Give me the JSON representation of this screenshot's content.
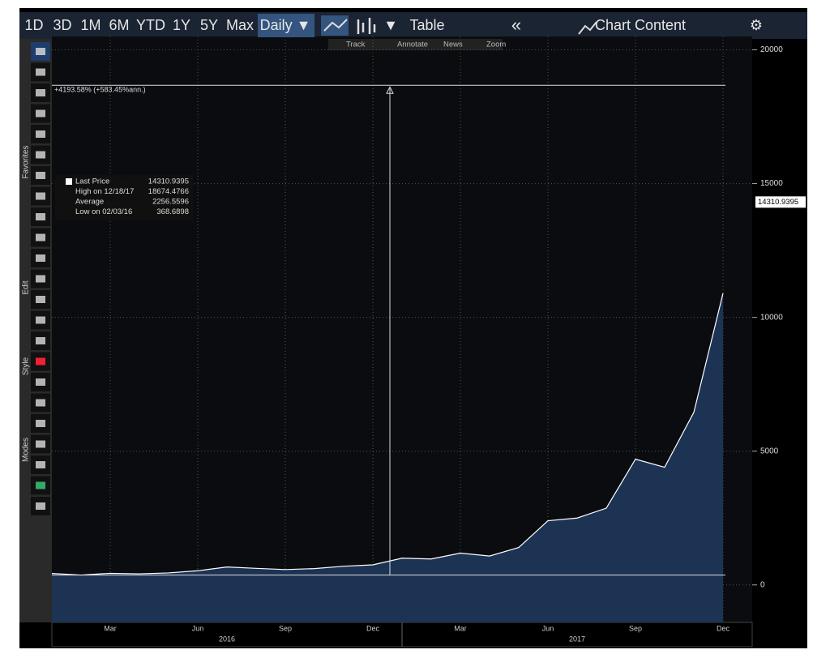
{
  "toolbar": {
    "buttons": [
      "1D",
      "3D",
      "1M",
      "6M",
      "YTD",
      "1Y",
      "5Y",
      "Max",
      "Daily ▼",
      "▼",
      "Table",
      "«",
      "Chart Content",
      "⚙"
    ]
  },
  "subtoolbar": [
    "Track",
    "Annotate",
    "News",
    "Zoom"
  ],
  "sidebar_sections": [
    "Favorites",
    "Edit",
    "Style",
    "Modes"
  ],
  "chart_data": {
    "type": "area",
    "x": [
      "2016-01",
      "2016-02",
      "2016-03",
      "2016-04",
      "2016-05",
      "2016-06",
      "2016-07",
      "2016-08",
      "2016-09",
      "2016-10",
      "2016-11",
      "2016-12",
      "2017-01",
      "2017-02",
      "2017-03",
      "2017-04",
      "2017-05",
      "2017-06",
      "2017-07",
      "2017-08",
      "2017-09",
      "2017-10",
      "2017-11",
      "2017-12"
    ],
    "series": [
      {
        "name": "Last Price",
        "color": "#ffffff",
        "fill": "#1c3354",
        "values": [
          430,
          370,
          435,
          415,
          450,
          530,
          670,
          620,
          575,
          610,
          700,
          750,
          1000,
          970,
          1190,
          1080,
          1400,
          2400,
          2500,
          2870,
          4700,
          4400,
          6450,
          10900
        ]
      }
    ],
    "xlim": [
      "2016-01",
      "2018-01"
    ],
    "xticks": [
      {
        "value": "2016-03",
        "label": "Mar"
      },
      {
        "value": "2016-06",
        "label": "Jun"
      },
      {
        "value": "2016-09",
        "label": "Sep"
      },
      {
        "value": "2016-12",
        "label": "Dec"
      },
      {
        "value": "2017-03",
        "label": "Mar"
      },
      {
        "value": "2017-06",
        "label": "Jun"
      },
      {
        "value": "2017-09",
        "label": "Sep"
      },
      {
        "value": "2017-12",
        "label": "Dec"
      }
    ],
    "year_labels": [
      {
        "value": "2016-07",
        "label": "2016"
      },
      {
        "value": "2017-07",
        "label": "2017"
      }
    ],
    "ylim": [
      -1400,
      20500
    ],
    "yticks": [
      0,
      5000,
      10000,
      15000,
      20000
    ],
    "grid": true,
    "annotation": "+4193.58% (+583.45%ann.)",
    "legend": [
      {
        "label": "Last Price",
        "value": 14310.9395
      },
      {
        "label": "High on 12/18/17",
        "value": 18674.4766
      },
      {
        "label": "Average",
        "value": 2256.5596
      },
      {
        "label": "Low on 02/03/16",
        "value": 368.6898
      }
    ]
  }
}
